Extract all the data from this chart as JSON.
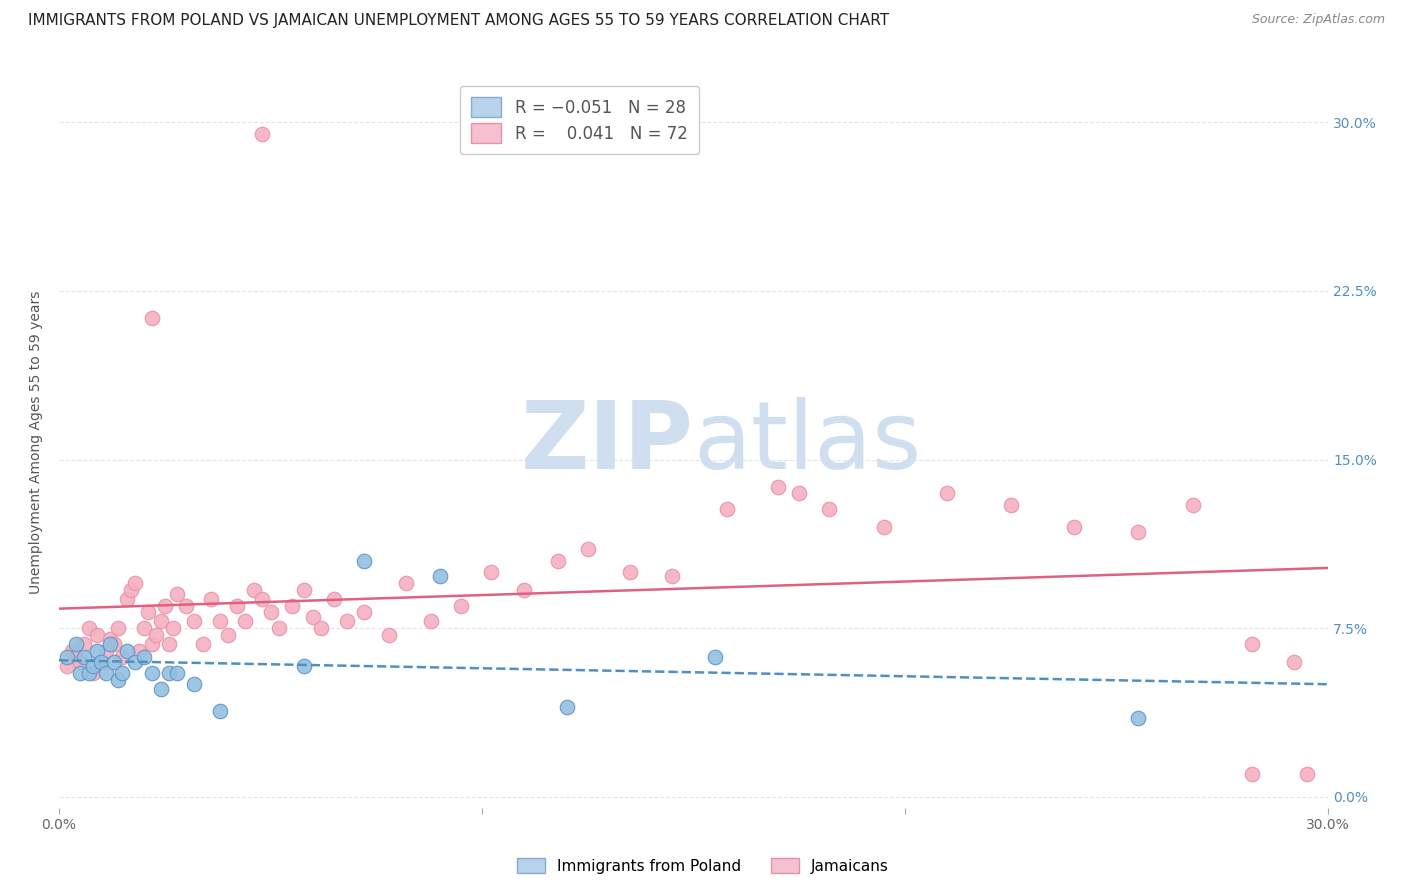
{
  "title": "IMMIGRANTS FROM POLAND VS JAMAICAN UNEMPLOYMENT AMONG AGES 55 TO 59 YEARS CORRELATION CHART",
  "source": "Source: ZipAtlas.com",
  "ylabel": "Unemployment Among Ages 55 to 59 years",
  "xlim": [
    0.0,
    0.3
  ],
  "ylim": [
    -0.005,
    0.32
  ],
  "ytick_labels": [
    "0.0%",
    "7.5%",
    "15.0%",
    "22.5%",
    "30.0%"
  ],
  "ytick_values": [
    0.0,
    0.075,
    0.15,
    0.225,
    0.3
  ],
  "xtick_labels": [
    "0.0%",
    "",
    "",
    "30.0%"
  ],
  "xtick_values": [
    0.0,
    0.1,
    0.2,
    0.3
  ],
  "poland_scatter_x": [
    0.002,
    0.004,
    0.005,
    0.006,
    0.007,
    0.008,
    0.009,
    0.01,
    0.011,
    0.012,
    0.013,
    0.014,
    0.015,
    0.016,
    0.018,
    0.02,
    0.022,
    0.024,
    0.026,
    0.028,
    0.032,
    0.038,
    0.058,
    0.072,
    0.09,
    0.12,
    0.155,
    0.255
  ],
  "poland_scatter_y": [
    0.062,
    0.068,
    0.055,
    0.062,
    0.055,
    0.058,
    0.065,
    0.06,
    0.055,
    0.068,
    0.06,
    0.052,
    0.055,
    0.065,
    0.06,
    0.062,
    0.055,
    0.048,
    0.055,
    0.055,
    0.05,
    0.038,
    0.058,
    0.105,
    0.098,
    0.04,
    0.062,
    0.035
  ],
  "jamaica_scatter_x": [
    0.002,
    0.003,
    0.004,
    0.005,
    0.006,
    0.007,
    0.008,
    0.009,
    0.01,
    0.011,
    0.012,
    0.013,
    0.014,
    0.015,
    0.016,
    0.017,
    0.018,
    0.019,
    0.02,
    0.021,
    0.022,
    0.023,
    0.024,
    0.025,
    0.026,
    0.027,
    0.028,
    0.03,
    0.032,
    0.034,
    0.036,
    0.038,
    0.04,
    0.042,
    0.044,
    0.046,
    0.048,
    0.05,
    0.052,
    0.055,
    0.058,
    0.06,
    0.062,
    0.065,
    0.068,
    0.072,
    0.078,
    0.082,
    0.088,
    0.095,
    0.102,
    0.11,
    0.118,
    0.125,
    0.135,
    0.145,
    0.158,
    0.17,
    0.182,
    0.195,
    0.21,
    0.225,
    0.24,
    0.255,
    0.268,
    0.282,
    0.292,
    0.022,
    0.048,
    0.295,
    0.175,
    0.282
  ],
  "jamaica_scatter_y": [
    0.058,
    0.065,
    0.062,
    0.06,
    0.068,
    0.075,
    0.055,
    0.072,
    0.06,
    0.065,
    0.07,
    0.068,
    0.075,
    0.062,
    0.088,
    0.092,
    0.095,
    0.065,
    0.075,
    0.082,
    0.068,
    0.072,
    0.078,
    0.085,
    0.068,
    0.075,
    0.09,
    0.085,
    0.078,
    0.068,
    0.088,
    0.078,
    0.072,
    0.085,
    0.078,
    0.092,
    0.088,
    0.082,
    0.075,
    0.085,
    0.092,
    0.08,
    0.075,
    0.088,
    0.078,
    0.082,
    0.072,
    0.095,
    0.078,
    0.085,
    0.1,
    0.092,
    0.105,
    0.11,
    0.1,
    0.098,
    0.128,
    0.138,
    0.128,
    0.12,
    0.135,
    0.13,
    0.12,
    0.118,
    0.13,
    0.068,
    0.06,
    0.213,
    0.295,
    0.01,
    0.135,
    0.01
  ],
  "poland_color": "#92c0e0",
  "jamaica_color": "#f5b0c0",
  "poland_line_color": "#5090c0",
  "jamaica_line_color": "#e06080",
  "background_color": "#ffffff",
  "watermark_part1": "ZIP",
  "watermark_part2": "atlas",
  "watermark_color": "#d0dff0",
  "right_axis_color": "#5090c0",
  "grid_color": "#e5e5e5",
  "title_fontsize": 11,
  "axis_label_fontsize": 10,
  "tick_fontsize": 10
}
